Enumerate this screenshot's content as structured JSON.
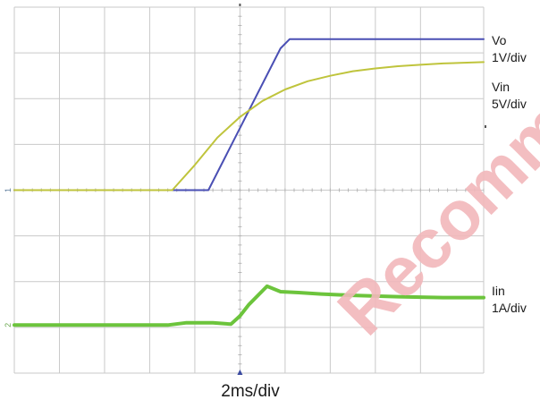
{
  "chart_data": {
    "type": "line",
    "title": "",
    "xlabel": "2ms/div",
    "ylabel": "",
    "x_unit": "div",
    "y_unit": "div",
    "xlim": [
      0,
      10.4
    ],
    "ylim": [
      -4,
      4
    ],
    "grid": true,
    "series": [
      {
        "name": "Vo",
        "scale": "1V/div",
        "color": "#4a4fb4",
        "x": [
          0,
          4.2,
          4.3,
          5.9,
          6.1,
          6.3,
          10.4
        ],
        "y": [
          0,
          0,
          0,
          3.1,
          3.3,
          3.3,
          3.3
        ]
      },
      {
        "name": "Vin",
        "scale": "5V/div",
        "color": "#bfc43c",
        "x": [
          0,
          3.5,
          4.0,
          4.5,
          5.0,
          5.5,
          6.0,
          6.5,
          7.0,
          7.5,
          8.0,
          8.5,
          9.0,
          9.5,
          10.4
        ],
        "y": [
          0,
          0,
          0.55,
          1.15,
          1.6,
          1.95,
          2.2,
          2.38,
          2.5,
          2.6,
          2.66,
          2.71,
          2.74,
          2.77,
          2.8
        ]
      },
      {
        "name": "Iin",
        "scale": "1A/div",
        "color": "#6cc43c",
        "x": [
          0,
          3.4,
          3.8,
          4.4,
          4.8,
          5.0,
          5.2,
          5.6,
          5.9,
          6.3,
          6.8,
          7.5,
          8.5,
          9.5,
          10.4
        ],
        "y": [
          -2.95,
          -2.95,
          -2.9,
          -2.9,
          -2.93,
          -2.75,
          -2.5,
          -2.1,
          -2.22,
          -2.24,
          -2.27,
          -2.3,
          -2.33,
          -2.35,
          -2.35
        ]
      }
    ]
  },
  "markers": {
    "ch1": "1",
    "ch2": "2"
  },
  "labels": {
    "vo_name": "Vo",
    "vo_scale": "1V/div",
    "vin_name": "Vin",
    "vin_scale": "5V/div",
    "iin_name": "Iin",
    "iin_scale": "1A/div"
  },
  "watermark": "Recommended"
}
